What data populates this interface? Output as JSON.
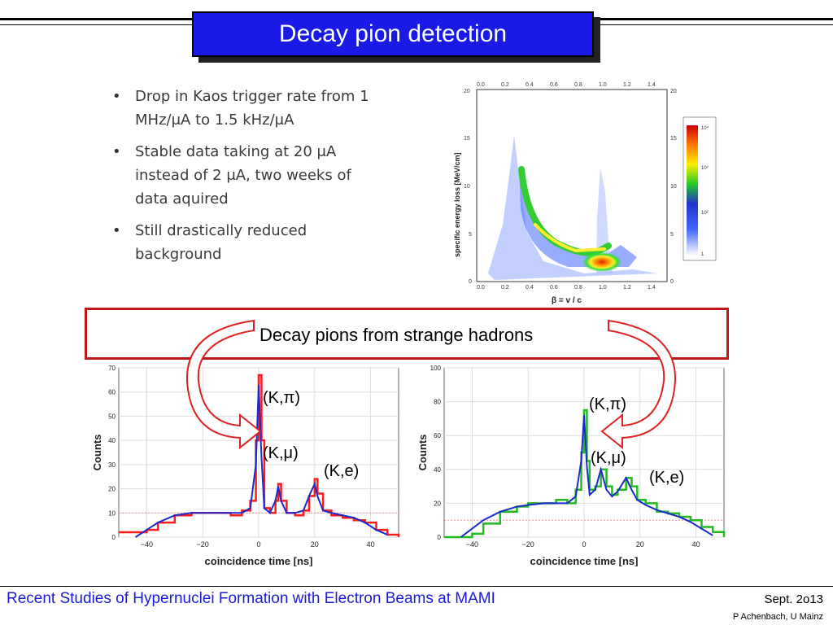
{
  "slide": {
    "title": "Decay pion detection",
    "bullets": [
      "Drop in Kaos trigger rate from 1 MHz/μA to 1.5 kHz/μA",
      "Stable data taking at 20 μA instead of 2 μA, two weeks of data aquired",
      "Still drastically reduced background"
    ],
    "callout": "Decay pions from strange hadrons",
    "footer_title": "Recent Studies of Hypernuclei Formation with Electron Beams at MAMI",
    "footer_date": "Sept. 2o13",
    "footer_author": "P Achenbach, U Mainz"
  },
  "colors": {
    "title_bg": "#1a1ae6",
    "callout_border": "#c0161a",
    "footer_text": "#1b1bd6",
    "hist1": "#ff1a1a",
    "hist2": "#22bb22",
    "fit": "#1a2acc"
  },
  "chart_data": [
    {
      "type": "heatmap",
      "xlabel": "β = v / c",
      "ylabel": "specific energy loss [MeV/cm]",
      "xlim": [
        0,
        1.5
      ],
      "ylim": [
        0,
        20
      ],
      "x_ticks": [
        "0.0",
        "0.2",
        "0.4",
        "0.6",
        "0.8",
        "1.0",
        "1.2",
        "1.4"
      ],
      "y_ticks": [
        "0",
        "5",
        "10",
        "15",
        "20"
      ],
      "colorbar_ticks": [
        "1",
        "10²",
        "10³",
        "10⁴"
      ]
    },
    {
      "type": "line",
      "xlabel": "coincidence time [ns]",
      "ylabel": "Counts",
      "xlim": [
        -50,
        50
      ],
      "ylim": [
        0,
        70
      ],
      "x_ticks": [
        -40,
        -20,
        0,
        20,
        40
      ],
      "y_ticks": [
        0,
        10,
        20,
        30,
        40,
        50,
        60,
        70
      ],
      "peaks": [
        {
          "label": "(K,π)",
          "x": 0,
          "y": 65
        },
        {
          "label": "(K,μ)",
          "x": 7,
          "y": 22
        },
        {
          "label": "(K,e)",
          "x": 20,
          "y": 24
        }
      ],
      "series": [
        {
          "values_x": [
            -50,
            -44,
            -40,
            -36,
            -30,
            -24,
            -20,
            -14,
            -10,
            -6,
            -3,
            -1,
            0,
            1,
            2,
            4,
            6,
            7,
            8,
            10,
            13,
            16,
            18,
            20,
            21,
            23,
            26,
            30,
            34,
            38,
            42,
            46,
            50
          ],
          "values_y": [
            2,
            2,
            3,
            6,
            9,
            10,
            10,
            10,
            9,
            11,
            15,
            40,
            67,
            40,
            12,
            10,
            15,
            22,
            15,
            10,
            9,
            11,
            17,
            24,
            18,
            11,
            9,
            8,
            7,
            6,
            3,
            1,
            0
          ]
        },
        {
          "values_x": [
            -44,
            -40,
            -36,
            -30,
            -24,
            -20,
            -14,
            -10,
            -6,
            -3,
            -1,
            0,
            1,
            2,
            4,
            6,
            7,
            8,
            10,
            13,
            16,
            18,
            20,
            21,
            23,
            26,
            30,
            34,
            38,
            42,
            46
          ],
          "values_y": [
            0,
            3,
            6,
            9,
            10,
            10,
            10,
            10,
            10,
            12,
            30,
            63,
            33,
            12,
            10,
            15,
            21,
            15,
            10,
            10,
            11,
            17,
            22,
            17,
            11,
            10,
            9,
            8,
            6,
            3,
            1
          ]
        }
      ]
    },
    {
      "type": "line",
      "xlabel": "coincidence time [ns]",
      "ylabel": "Counts",
      "xlim": [
        -50,
        50
      ],
      "ylim": [
        0,
        100
      ],
      "x_ticks": [
        -40,
        -20,
        0,
        20,
        40
      ],
      "y_ticks": [
        0,
        20,
        40,
        60,
        80,
        100
      ],
      "peaks": [
        {
          "label": "(K,π)",
          "x": 0,
          "y": 72
        },
        {
          "label": "(K,μ)",
          "x": 6,
          "y": 40
        },
        {
          "label": "(K,e)",
          "x": 15,
          "y": 35
        }
      ],
      "series": [
        {
          "values_x": [
            -50,
            -44,
            -40,
            -36,
            -30,
            -24,
            -20,
            -14,
            -10,
            -6,
            -3,
            -1,
            0,
            1,
            2,
            4,
            6,
            8,
            10,
            12,
            15,
            17,
            19,
            22,
            26,
            30,
            34,
            38,
            42,
            46,
            50
          ],
          "values_y": [
            0,
            0,
            2,
            8,
            15,
            18,
            20,
            20,
            22,
            20,
            28,
            50,
            75,
            45,
            28,
            30,
            40,
            30,
            25,
            28,
            35,
            30,
            22,
            20,
            15,
            14,
            12,
            10,
            6,
            3,
            0
          ]
        },
        {
          "values_x": [
            -44,
            -40,
            -36,
            -30,
            -24,
            -20,
            -14,
            -10,
            -6,
            -3,
            -1,
            0,
            1,
            2,
            4,
            6,
            8,
            10,
            12,
            15,
            17,
            19,
            22,
            26,
            30,
            34,
            38,
            42,
            46
          ],
          "values_y": [
            0,
            5,
            10,
            15,
            18,
            19,
            20,
            20,
            20,
            24,
            45,
            72,
            42,
            25,
            28,
            40,
            28,
            24,
            27,
            35,
            28,
            22,
            19,
            16,
            14,
            12,
            9,
            5,
            1
          ]
        }
      ]
    }
  ]
}
